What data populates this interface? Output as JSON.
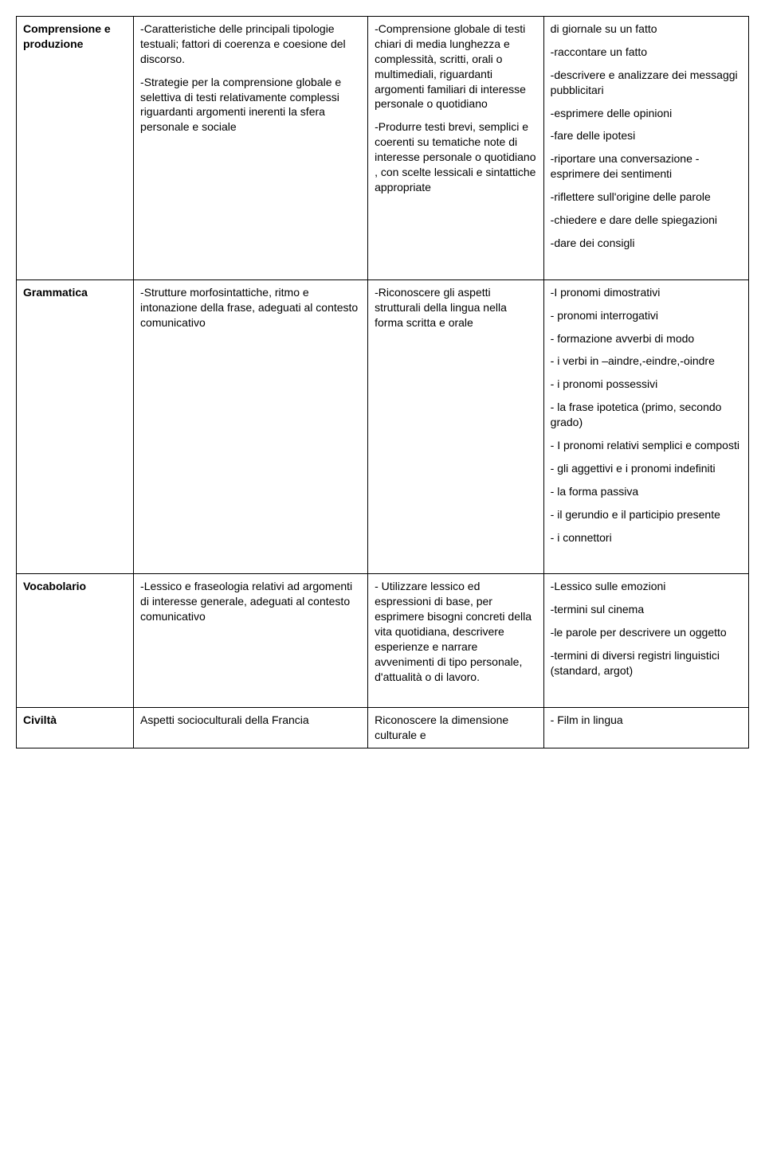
{
  "rows": [
    {
      "c1": [
        {
          "text": "Comprensione e produzione",
          "bold": true
        }
      ],
      "c2": [
        {
          "text": "-Caratteristiche delle principali tipologie testuali; fattori di coerenza e coesione del discorso."
        },
        {
          "text": "-Strategie per la comprensione globale e selettiva di testi relativamente complessi riguardanti argomenti inerenti la sfera personale e sociale"
        }
      ],
      "c3": [
        {
          "text": "-Comprensione globale di testi chiari di media lunghezza e complessità, scritti, orali o multimediali, riguardanti argomenti familiari di interesse personale o quotidiano"
        },
        {
          "text": "-Produrre testi brevi, semplici e coerenti su tematiche note di interesse personale o quotidiano , con scelte lessicali e sintattiche appropriate"
        }
      ],
      "c4": [
        {
          "text": "di giornale su un fatto"
        },
        {
          "text": "-raccontare un fatto"
        },
        {
          "text": "-descrivere e analizzare dei messaggi pubblicitari"
        },
        {
          "text": "-esprimere delle opinioni"
        },
        {
          "text": "-fare delle ipotesi"
        },
        {
          "text": "-riportare una conversazione -esprimere dei sentimenti"
        },
        {
          "text": "-riflettere sull'origine delle parole"
        },
        {
          "text": "-chiedere e dare delle spiegazioni"
        },
        {
          "text": "-dare dei consigli"
        },
        {
          "text": "",
          "spacer": true
        }
      ]
    },
    {
      "c1": [
        {
          "text": "Grammatica",
          "bold": true
        }
      ],
      "c2": [
        {
          "text": "-Strutture morfosintattiche, ritmo e intonazione della frase, adeguati al contesto comunicativo"
        }
      ],
      "c3": [
        {
          "text": "-Riconoscere gli aspetti strutturali della lingua nella forma scritta e orale"
        }
      ],
      "c4": [
        {
          "text": "-I pronomi dimostrativi"
        },
        {
          "text": "- pronomi interrogativi"
        },
        {
          "text": "- formazione avverbi di modo"
        },
        {
          "text": "- i verbi in –aindre,-eindre,-oindre"
        },
        {
          "text": "- i pronomi possessivi"
        },
        {
          "text": "- la frase ipotetica (primo, secondo grado)"
        },
        {
          "text": "- I pronomi relativi semplici e composti"
        },
        {
          "text": "- gli aggettivi e i pronomi indefiniti"
        },
        {
          "text": "- la forma passiva"
        },
        {
          "text": "- il gerundio e il participio presente"
        },
        {
          "text": "- i connettori"
        },
        {
          "text": "",
          "spacer": true
        }
      ]
    },
    {
      "c1": [
        {
          "text": "Vocabolario",
          "bold": true
        }
      ],
      "c2": [
        {
          "text": "-Lessico e fraseologia relativi ad argomenti di interesse generale, adeguati al contesto comunicativo"
        }
      ],
      "c3": [
        {
          "text": "- Utilizzare lessico ed espressioni di base, per esprimere bisogni concreti della vita quotidiana, descrivere esperienze e narrare avvenimenti di tipo personale, d'attualità o di lavoro."
        }
      ],
      "c4": [
        {
          "text": "-Lessico sulle emozioni"
        },
        {
          "text": "-termini sul cinema"
        },
        {
          "text": "-le parole per descrivere un oggetto"
        },
        {
          "text": "-termini di diversi registri linguistici (standard, argot)"
        },
        {
          "text": "",
          "spacer": true
        }
      ]
    },
    {
      "c1": [
        {
          "text": "Civiltà",
          "bold": true
        }
      ],
      "c2": [
        {
          "text": "Aspetti socioculturali della Francia"
        }
      ],
      "c3": [
        {
          "text": "Riconoscere la dimensione culturale e"
        }
      ],
      "c4": [
        {
          "text": "- Film in lingua"
        }
      ]
    }
  ]
}
